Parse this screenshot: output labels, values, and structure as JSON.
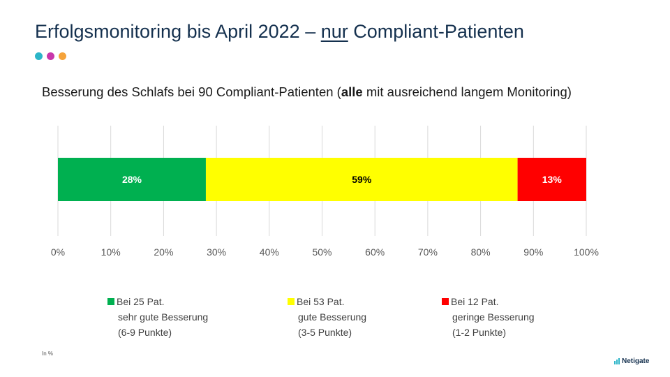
{
  "title": {
    "prefix": "Erfolgsmonitoring bis April 2022 –",
    "highlight": "nur",
    "suffix": "Compliant-Patienten"
  },
  "accent_dots": [
    {
      "name": "dot-teal",
      "color": "#2cb5c8"
    },
    {
      "name": "dot-magenta",
      "color": "#c837ab"
    },
    {
      "name": "dot-orange",
      "color": "#f5a33a"
    }
  ],
  "subtitle": {
    "part1": "Besserung des Schlafs bei 90 Compliant-Patienten (",
    "bold": "alle",
    "part2": " mit ausreichend langem Monitoring)"
  },
  "chart_data": {
    "type": "bar",
    "orientation": "horizontal",
    "stacked": true,
    "xlim": [
      0,
      100
    ],
    "ticks": [
      "0%",
      "10%",
      "20%",
      "30%",
      "40%",
      "50%",
      "60%",
      "70%",
      "80%",
      "90%",
      "100%"
    ],
    "grid": true,
    "series": [
      {
        "name": "Bei 25 Pat. sehr gute Besserung (6-9 Punkte)",
        "value": 28,
        "label": "28%",
        "color": "#00b050",
        "label_color": "#ffffff"
      },
      {
        "name": "Bei 53 Pat. gute Besserung (3-5 Punkte)",
        "value": 59,
        "label": "59%",
        "color": "#ffff00",
        "label_color": "#000000"
      },
      {
        "name": "Bei 12 Pat. geringe Besserung (1-2 Punkte)",
        "value": 13,
        "label": "13%",
        "color": "#ff0000",
        "label_color": "#ffffff"
      }
    ]
  },
  "legend": [
    {
      "line1": "Bei 25 Pat.",
      "line2": "sehr gute Besserung",
      "line3": "(6-9 Punkte)",
      "color": "#00b050"
    },
    {
      "line1": "Bei 53 Pat.",
      "line2": "gute Besserung",
      "line3": "(3-5 Punkte)",
      "color": "#ffff00"
    },
    {
      "line1": "Bei 12 Pat.",
      "line2": "geringe Besserung",
      "line3": "(1-2 Punkte)",
      "color": "#ff0000"
    }
  ],
  "footnote": "In %",
  "brand": "Netigate"
}
